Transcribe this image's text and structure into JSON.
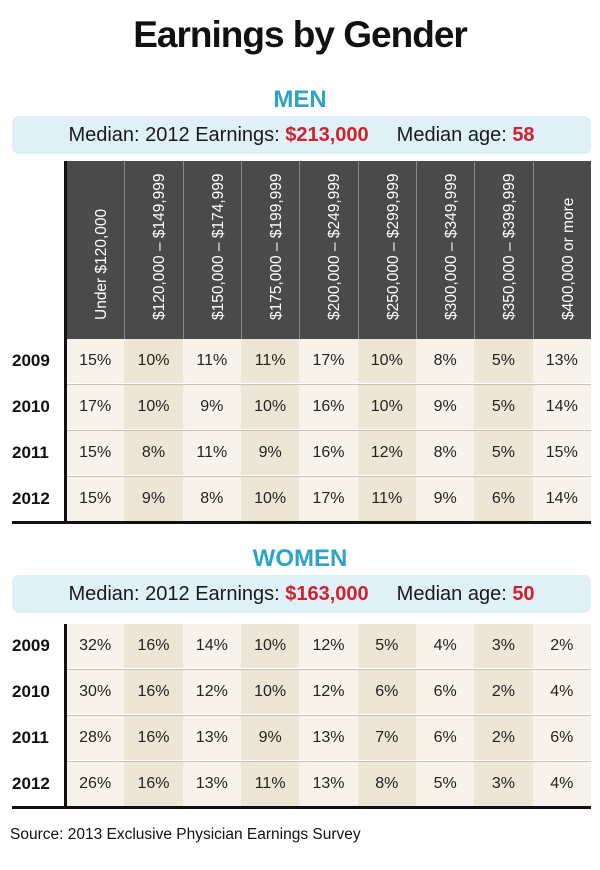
{
  "title": "Earnings by Gender",
  "chart_data": {
    "type": "table",
    "columns": [
      "Under $120,000",
      "$120,000 – $149,999",
      "$150,000 – $174,999",
      "$175,000 – $199,999",
      "$200,000 – $249,999",
      "$250,000 – $299,999",
      "$300,000 – $349,999",
      "$350,000 – $399,999",
      "$400,000 or more"
    ],
    "men": {
      "label": "MEN",
      "median_earnings_label": "Median: 2012 Earnings:",
      "median_earnings": "$213,000",
      "median_age_label": "Median age:",
      "median_age": "58",
      "rows": [
        {
          "year": "2009",
          "values": [
            "15%",
            "10%",
            "11%",
            "11%",
            "17%",
            "10%",
            "8%",
            "5%",
            "13%"
          ]
        },
        {
          "year": "2010",
          "values": [
            "17%",
            "10%",
            "9%",
            "10%",
            "16%",
            "10%",
            "9%",
            "5%",
            "14%"
          ]
        },
        {
          "year": "2011",
          "values": [
            "15%",
            "8%",
            "11%",
            "9%",
            "16%",
            "12%",
            "8%",
            "5%",
            "15%"
          ]
        },
        {
          "year": "2012",
          "values": [
            "15%",
            "9%",
            "8%",
            "10%",
            "17%",
            "11%",
            "9%",
            "6%",
            "14%"
          ]
        }
      ]
    },
    "women": {
      "label": "WOMEN",
      "median_earnings_label": "Median: 2012 Earnings:",
      "median_earnings": "$163,000",
      "median_age_label": "Median age:",
      "median_age": "50",
      "rows": [
        {
          "year": "2009",
          "values": [
            "32%",
            "16%",
            "14%",
            "10%",
            "12%",
            "5%",
            "4%",
            "3%",
            "2%"
          ]
        },
        {
          "year": "2010",
          "values": [
            "30%",
            "16%",
            "12%",
            "10%",
            "12%",
            "6%",
            "6%",
            "2%",
            "4%"
          ]
        },
        {
          "year": "2011",
          "values": [
            "28%",
            "16%",
            "13%",
            "9%",
            "13%",
            "7%",
            "6%",
            "2%",
            "6%"
          ]
        },
        {
          "year": "2012",
          "values": [
            "26%",
            "16%",
            "13%",
            "11%",
            "13%",
            "8%",
            "5%",
            "3%",
            "4%"
          ]
        }
      ]
    }
  },
  "source": "Source: 2013 Exclusive Physician Earnings Survey"
}
